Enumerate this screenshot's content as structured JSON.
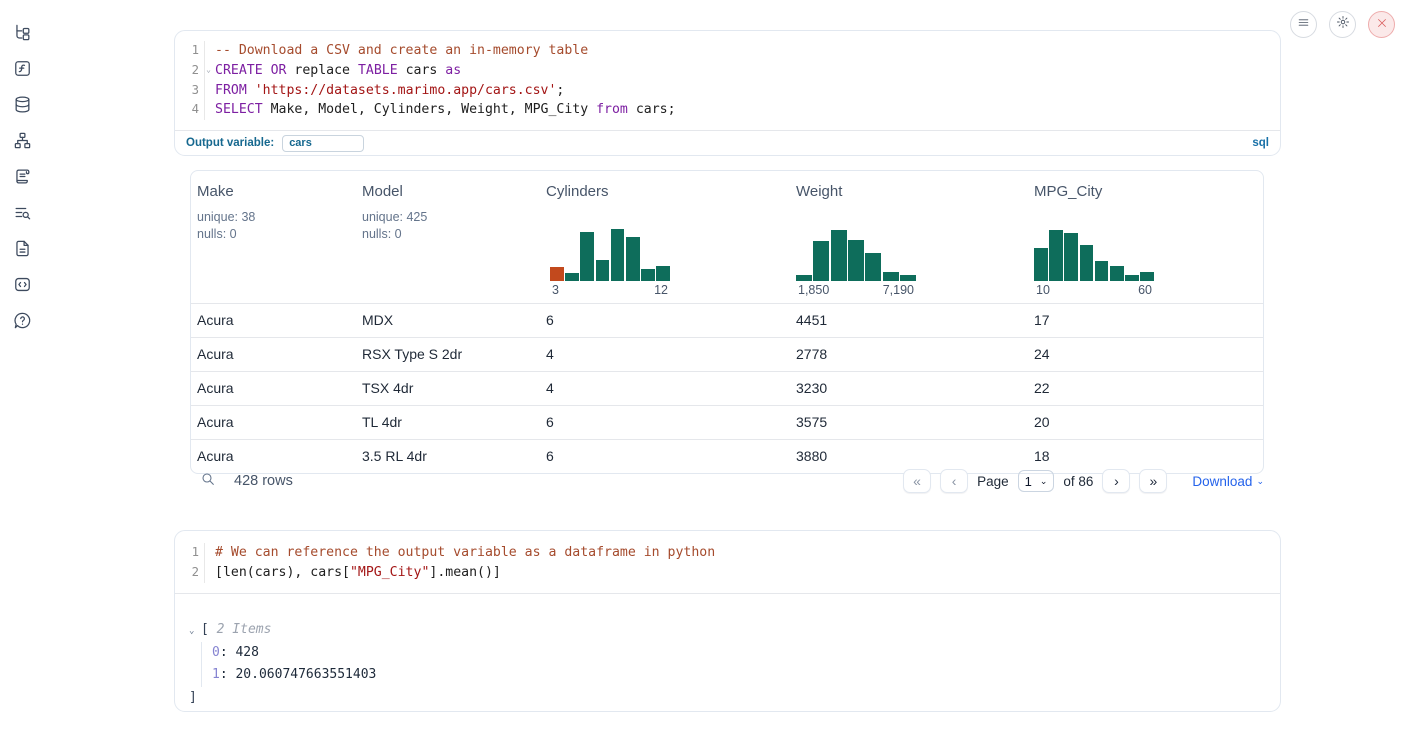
{
  "colors": {
    "hist_green": "#0e6d5b",
    "hist_orange": "#c2491d",
    "keyword": "#7d1fa2",
    "comment": "#a54b2d",
    "string": "#a31515",
    "accent_blue": "#2563eb",
    "outvar_blue": "#16688f"
  },
  "sidebar": {
    "items": [
      {
        "name": "file-tree-icon"
      },
      {
        "name": "functions-icon"
      },
      {
        "name": "datasources-icon"
      },
      {
        "name": "dependency-graph-icon"
      },
      {
        "name": "logs-icon"
      },
      {
        "name": "outline-search-icon"
      },
      {
        "name": "documentation-icon"
      },
      {
        "name": "snippets-icon"
      },
      {
        "name": "help-icon"
      }
    ]
  },
  "top_controls": [
    {
      "name": "menu-button",
      "icon": "hamburger-icon"
    },
    {
      "name": "settings-button",
      "icon": "gear-icon"
    },
    {
      "name": "shutdown-button",
      "icon": "close-x-icon"
    }
  ],
  "cells": [
    {
      "id": "sql",
      "lines": [
        {
          "num": "1",
          "fold": false,
          "tokens": [
            [
              "c",
              "-- Download a CSV and create an in-memory table"
            ]
          ]
        },
        {
          "num": "2",
          "fold": true,
          "tokens": [
            [
              "k",
              "CREATE"
            ],
            [
              "p",
              " "
            ],
            [
              "k",
              "OR"
            ],
            [
              "p",
              " replace "
            ],
            [
              "k",
              "TABLE"
            ],
            [
              "p",
              " cars "
            ],
            [
              "k",
              "as"
            ]
          ]
        },
        {
          "num": "3",
          "fold": false,
          "tokens": [
            [
              "k",
              "FROM"
            ],
            [
              "p",
              " "
            ],
            [
              "s",
              "'https://datasets.marimo.app/cars.csv'"
            ],
            [
              "p",
              ";"
            ]
          ]
        },
        {
          "num": "4",
          "fold": false,
          "tokens": [
            [
              "k",
              "SELECT"
            ],
            [
              "p",
              " Make, Model, Cylinders, Weight, MPG_City "
            ],
            [
              "k",
              "from"
            ],
            [
              "p",
              " cars;"
            ]
          ]
        }
      ],
      "footer": {
        "label": "Output variable:",
        "value": "cars",
        "lang": "sql"
      }
    },
    {
      "id": "python",
      "lines": [
        {
          "num": "1",
          "fold": false,
          "tokens": [
            [
              "c",
              "# We can reference the output variable as a dataframe in python"
            ]
          ]
        },
        {
          "num": "2",
          "fold": false,
          "tokens": [
            [
              "p",
              "[len(cars), cars["
            ],
            [
              "s",
              "\"MPG_City\""
            ],
            [
              "p",
              "].mean()]"
            ]
          ]
        }
      ]
    }
  ],
  "table": {
    "columns": [
      {
        "name": "Make",
        "stats": [
          "unique: 38",
          "nulls: 0"
        ]
      },
      {
        "name": "Model",
        "stats": [
          "unique: 425",
          "nulls: 0"
        ]
      },
      {
        "name": "Cylinders",
        "hist": {
          "bars": [
            0.25,
            0.15,
            0.89,
            0.38,
            0.95,
            0.8,
            0.22,
            0.27
          ],
          "highlight_first": true,
          "min_label": "3",
          "max_label": "12"
        }
      },
      {
        "name": "Weight",
        "hist": {
          "bars": [
            0.1,
            0.73,
            0.93,
            0.75,
            0.5,
            0.17,
            0.11
          ],
          "highlight_first": false,
          "min_label": "1,850",
          "max_label": "7,190"
        }
      },
      {
        "name": "MPG_City",
        "hist": {
          "bars": [
            0.6,
            0.93,
            0.88,
            0.65,
            0.37,
            0.27,
            0.1,
            0.16
          ],
          "highlight_first": false,
          "min_label": "10",
          "max_label": "60"
        }
      }
    ],
    "rows": [
      [
        "Acura",
        "MDX",
        "6",
        "4451",
        "17"
      ],
      [
        "Acura",
        "RSX Type S 2dr",
        "4",
        "2778",
        "24"
      ],
      [
        "Acura",
        "TSX 4dr",
        "4",
        "3230",
        "22"
      ],
      [
        "Acura",
        "TL 4dr",
        "6",
        "3575",
        "20"
      ],
      [
        "Acura",
        "3.5 RL 4dr",
        "6",
        "3880",
        "18"
      ]
    ],
    "footer": {
      "row_count": "428 rows",
      "page_label": "Page",
      "page_value": "1",
      "of_label": "of 86",
      "first_glyph": "«",
      "prev_glyph": "‹",
      "next_glyph": "›",
      "last_glyph": "»",
      "select_chev": "⌄",
      "download_label": "Download",
      "download_chev": "⌄"
    }
  },
  "python_output": {
    "open_bracket": "[",
    "items_label": "2 Items",
    "entries": [
      {
        "key": "0",
        "value": "428"
      },
      {
        "key": "1",
        "value": "20.060747663551403"
      }
    ],
    "close_bracket": "]",
    "collapse_chev": "⌄"
  }
}
